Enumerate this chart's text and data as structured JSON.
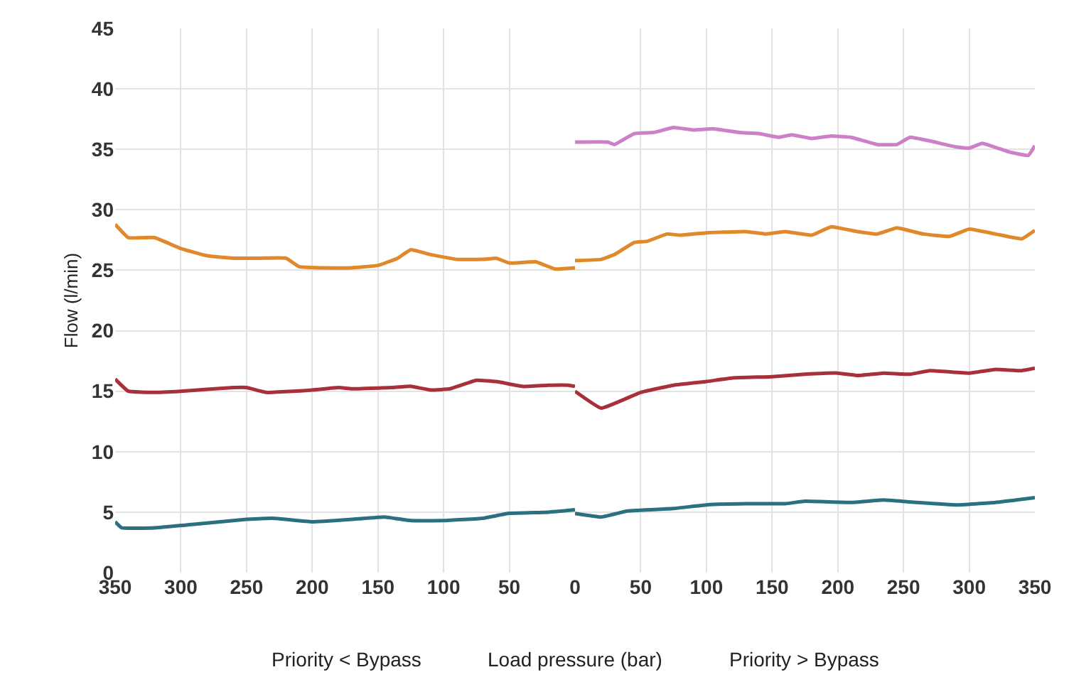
{
  "chart_data": [
    {
      "type": "line",
      "ylabel": "Flow (l/min)",
      "xlim": [
        350,
        0
      ],
      "xticks": [
        350,
        300,
        250,
        200,
        150,
        100,
        50
      ],
      "ylim": [
        0,
        45
      ],
      "yticks": [
        0,
        5,
        10,
        15,
        20,
        25,
        30,
        35,
        40,
        45
      ],
      "grid": true,
      "line_style": "solid",
      "marker": "none",
      "annotations": [
        "Priority < Bypass",
        "Load pressure (bar)"
      ],
      "series": [
        {
          "color": "#e0892a",
          "x": [
            350,
            340,
            320,
            300,
            280,
            260,
            240,
            220,
            210,
            190,
            170,
            150,
            135,
            125,
            110,
            90,
            70,
            60,
            50,
            30,
            15,
            0
          ],
          "values": [
            28.8,
            27.7,
            27.7,
            26.8,
            26.2,
            26.0,
            26.0,
            26.0,
            25.3,
            25.2,
            25.2,
            25.4,
            26.0,
            26.7,
            26.3,
            25.9,
            25.9,
            26.0,
            25.6,
            25.7,
            25.1,
            25.2
          ]
        },
        {
          "color": "#a8303a",
          "x": [
            350,
            340,
            320,
            300,
            260,
            250,
            235,
            200,
            180,
            170,
            140,
            125,
            110,
            95,
            75,
            60,
            40,
            20,
            5,
            0
          ],
          "values": [
            16.0,
            15.0,
            14.9,
            15.0,
            15.3,
            15.3,
            14.9,
            15.1,
            15.3,
            15.2,
            15.3,
            15.4,
            15.1,
            15.2,
            15.9,
            15.8,
            15.4,
            15.5,
            15.5,
            15.4
          ]
        },
        {
          "color": "#2a7080",
          "x": [
            350,
            345,
            320,
            290,
            250,
            230,
            200,
            170,
            145,
            125,
            100,
            70,
            50,
            20,
            0
          ],
          "values": [
            4.2,
            3.7,
            3.7,
            4.0,
            4.4,
            4.5,
            4.2,
            4.4,
            4.6,
            4.3,
            4.3,
            4.5,
            4.9,
            5.0,
            5.2
          ]
        }
      ]
    },
    {
      "type": "line",
      "xlim": [
        0,
        350
      ],
      "xticks": [
        0,
        50,
        100,
        150,
        200,
        250,
        300,
        350
      ],
      "ylim": [
        0,
        45
      ],
      "yticks": [
        0,
        5,
        10,
        15,
        20,
        25,
        30,
        35,
        40,
        45
      ],
      "grid": true,
      "line_style": "solid",
      "marker": "none",
      "tick_labels": "x",
      "annotations": [
        "Priority > Bypass"
      ],
      "series": [
        {
          "color": "#cc80c8",
          "x": [
            0,
            25,
            30,
            45,
            60,
            75,
            90,
            105,
            125,
            140,
            155,
            165,
            180,
            195,
            210,
            230,
            245,
            255,
            270,
            290,
            300,
            310,
            330,
            345,
            350
          ],
          "values": [
            35.6,
            35.6,
            35.4,
            36.3,
            36.4,
            36.8,
            36.6,
            36.7,
            36.4,
            36.3,
            36.0,
            36.2,
            35.9,
            36.1,
            36.0,
            35.4,
            35.4,
            36.0,
            35.7,
            35.2,
            35.1,
            35.5,
            34.8,
            34.5,
            35.3
          ]
        },
        {
          "color": "#e0892a",
          "x": [
            0,
            20,
            30,
            45,
            55,
            70,
            80,
            100,
            130,
            145,
            160,
            180,
            195,
            215,
            230,
            245,
            265,
            285,
            300,
            320,
            340,
            350
          ],
          "values": [
            25.8,
            25.9,
            26.3,
            27.3,
            27.4,
            28.0,
            27.9,
            28.1,
            28.2,
            28.0,
            28.2,
            27.9,
            28.6,
            28.2,
            28.0,
            28.5,
            28.0,
            27.8,
            28.4,
            28.0,
            27.6,
            28.3
          ]
        },
        {
          "color": "#a8303a",
          "x": [
            0,
            20,
            50,
            75,
            100,
            120,
            150,
            175,
            200,
            215,
            235,
            255,
            270,
            300,
            320,
            340,
            350
          ],
          "values": [
            15.0,
            13.6,
            14.9,
            15.5,
            15.8,
            16.1,
            16.2,
            16.4,
            16.5,
            16.3,
            16.5,
            16.4,
            16.7,
            16.5,
            16.8,
            16.7,
            16.9
          ]
        },
        {
          "color": "#2a7080",
          "x": [
            0,
            20,
            40,
            75,
            100,
            130,
            160,
            175,
            210,
            235,
            260,
            290,
            320,
            350
          ],
          "values": [
            4.9,
            4.6,
            5.1,
            5.3,
            5.6,
            5.7,
            5.7,
            5.9,
            5.8,
            6.0,
            5.8,
            5.6,
            5.8,
            6.2
          ]
        }
      ]
    }
  ]
}
